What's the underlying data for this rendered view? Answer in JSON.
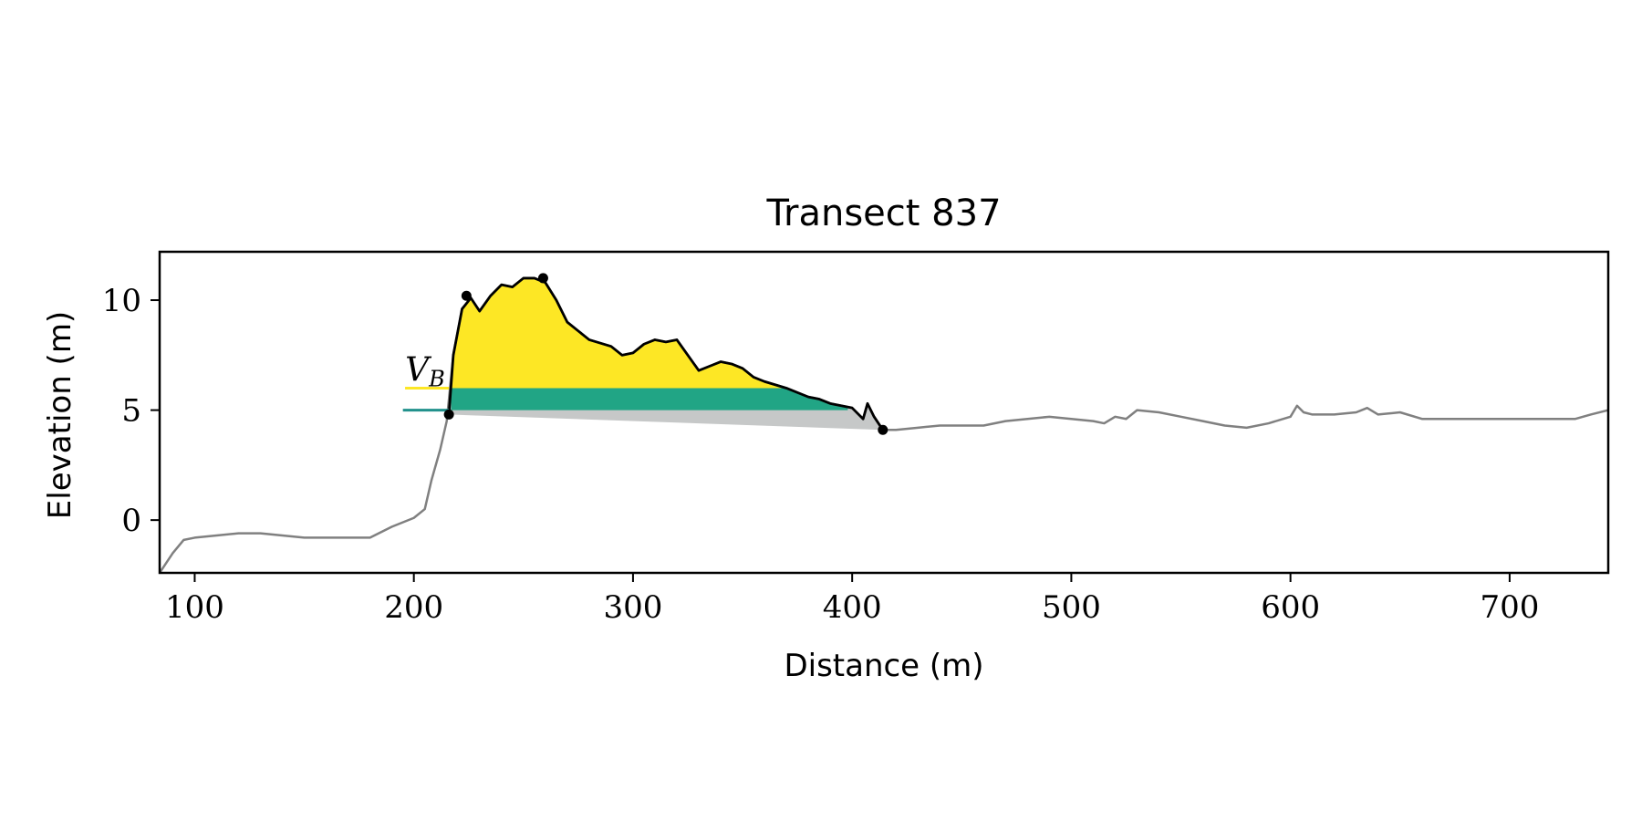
{
  "chart_data": {
    "type": "line",
    "title": "Transect 837",
    "xlabel": "Distance (m)",
    "ylabel": "Elevation (m)",
    "xlim": [
      84,
      745
    ],
    "ylim": [
      -2.4,
      12.2
    ],
    "xticks": [
      100,
      200,
      300,
      400,
      500,
      600,
      700
    ],
    "yticks": [
      0,
      5,
      10
    ],
    "xtick_labels": [
      "100",
      "200",
      "300",
      "400",
      "500",
      "600",
      "700"
    ],
    "ytick_labels": [
      "0",
      "5",
      "10"
    ],
    "grid": false,
    "legend": "none",
    "annotation_text": "V",
    "annotation_subscript": "B",
    "colors": {
      "profile": "#808080",
      "dune": "#000000",
      "upper_fill": "#fde725",
      "lower_fill": "#21a585",
      "base_fill": "#c6c8c8",
      "level_upper": "#fde725",
      "level_lower": "#21918c"
    },
    "profile": {
      "x": [
        84,
        90,
        95,
        100,
        110,
        120,
        130,
        140,
        150,
        160,
        170,
        180,
        190,
        200,
        205,
        208,
        212,
        215,
        218,
        222,
        226,
        230,
        235,
        240,
        245,
        250,
        255,
        260,
        265,
        270,
        280,
        290,
        295,
        300,
        305,
        310,
        315,
        320,
        325,
        330,
        335,
        340,
        345,
        350,
        355,
        360,
        370,
        380,
        385,
        390,
        395,
        400,
        405,
        407,
        410,
        414,
        420,
        430,
        440,
        450,
        460,
        470,
        480,
        490,
        500,
        510,
        515,
        520,
        525,
        530,
        540,
        550,
        560,
        570,
        580,
        590,
        600,
        603,
        606,
        610,
        620,
        630,
        635,
        640,
        650,
        660,
        670,
        680,
        690,
        700,
        710,
        720,
        730,
        737,
        745
      ],
      "y": [
        -2.4,
        -1.5,
        -0.9,
        -0.8,
        -0.7,
        -0.6,
        -0.6,
        -0.7,
        -0.8,
        -0.8,
        -0.8,
        -0.8,
        -0.3,
        0.1,
        0.5,
        1.8,
        3.2,
        4.5,
        7.5,
        9.6,
        10.1,
        9.5,
        10.2,
        10.7,
        10.6,
        11.0,
        11.0,
        10.8,
        10.0,
        9.0,
        8.2,
        7.9,
        7.5,
        7.6,
        8.0,
        8.2,
        8.1,
        8.2,
        7.5,
        6.8,
        7.0,
        7.2,
        7.1,
        6.9,
        6.5,
        6.3,
        6.0,
        5.6,
        5.5,
        5.3,
        5.2,
        5.1,
        4.6,
        5.3,
        4.7,
        4.1,
        4.1,
        4.2,
        4.3,
        4.3,
        4.3,
        4.5,
        4.6,
        4.7,
        4.6,
        4.5,
        4.4,
        4.7,
        4.6,
        5.0,
        4.9,
        4.7,
        4.5,
        4.3,
        4.2,
        4.4,
        4.7,
        5.2,
        4.9,
        4.8,
        4.8,
        4.9,
        5.1,
        4.8,
        4.9,
        4.6,
        4.6,
        4.6,
        4.6,
        4.6,
        4.6,
        4.6,
        4.6,
        4.8,
        5.0
      ]
    },
    "dune": {
      "x": [
        216,
        218,
        222,
        226,
        230,
        235,
        240,
        245,
        250,
        255,
        260,
        265,
        270,
        280,
        290,
        295,
        300,
        305,
        310,
        315,
        320,
        325,
        330,
        335,
        340,
        345,
        350,
        355,
        360,
        370,
        380,
        385,
        390,
        395,
        400,
        405,
        407,
        410,
        414
      ],
      "y": [
        4.8,
        7.5,
        9.6,
        10.1,
        9.5,
        10.2,
        10.7,
        10.6,
        11.0,
        11.0,
        10.8,
        10.0,
        9.0,
        8.2,
        7.9,
        7.5,
        7.6,
        8.0,
        8.2,
        8.1,
        8.2,
        7.5,
        6.8,
        7.0,
        7.2,
        7.1,
        6.9,
        6.5,
        6.3,
        6.0,
        5.6,
        5.5,
        5.3,
        5.2,
        5.1,
        4.6,
        5.3,
        4.7,
        4.1
      ]
    },
    "markers": [
      {
        "x": 216,
        "y": 4.8
      },
      {
        "x": 224,
        "y": 10.2
      },
      {
        "x": 259,
        "y": 11.0
      },
      {
        "x": 414,
        "y": 4.1
      }
    ],
    "levels": {
      "upper": {
        "y": 6.0,
        "x_start": 196,
        "x_end": 216
      },
      "lower": {
        "y": 5.0,
        "x_start": 195,
        "x_end": 216
      }
    },
    "bands": {
      "upper_fill": {
        "y_low": 6.0,
        "x_range": [
          217,
          380
        ]
      },
      "lower_fill": {
        "y_low": 5.0,
        "y_high": 6.0,
        "x_range": [
          217,
          398
        ]
      },
      "base_fill": {
        "x_range": [
          216,
          414
        ],
        "y_start": 4.8,
        "y_end": 4.1
      }
    }
  }
}
